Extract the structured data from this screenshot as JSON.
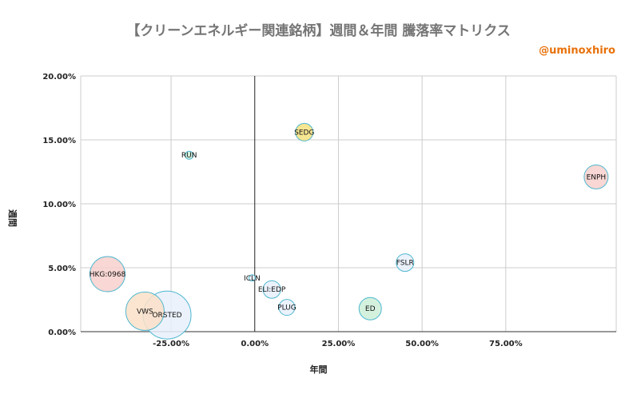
{
  "header": {
    "title": "【クリーンエネルギー関連銘柄】週間＆年間 騰落率マトリクス",
    "author": "@uminoxhiro"
  },
  "chart_data": {
    "type": "scatter",
    "title": "【クリーンエネルギー関連銘柄】週間＆年間 騰落率マトリクス",
    "xlabel": "年間",
    "ylabel": "週間",
    "xlim": [
      -0.52,
      1.08
    ],
    "ylim": [
      0,
      0.2
    ],
    "x_ticks": [
      {
        "v": -0.25,
        "label": "-25.00%"
      },
      {
        "v": 0.0,
        "label": "0.00%"
      },
      {
        "v": 0.25,
        "label": "25.00%"
      },
      {
        "v": 0.5,
        "label": "50.00%"
      },
      {
        "v": 0.75,
        "label": "75.00%"
      }
    ],
    "y_ticks": [
      {
        "v": 0.0,
        "label": "0.00%"
      },
      {
        "v": 0.05,
        "label": "5.00%"
      },
      {
        "v": 0.1,
        "label": "10.00%"
      },
      {
        "v": 0.15,
        "label": "15.00%"
      },
      {
        "v": 0.2,
        "label": "20.00%"
      }
    ],
    "grid": true,
    "points": [
      {
        "label": "SEDG",
        "x": 0.148,
        "y": 0.156,
        "size": 11,
        "color": "#f6e27f"
      },
      {
        "label": "RUN",
        "x": -0.196,
        "y": 0.138,
        "size": 5,
        "color": "#cdeed8"
      },
      {
        "label": "ENPH",
        "x": 1.02,
        "y": 0.121,
        "size": 15,
        "color": "#f7d0cd"
      },
      {
        "label": "FSLR",
        "x": 0.449,
        "y": 0.054,
        "size": 11,
        "color": "#e8f0fb"
      },
      {
        "label": "HKG:0968",
        "x": -0.44,
        "y": 0.045,
        "size": 22,
        "color": "#f7d0cd"
      },
      {
        "label": "ICLN",
        "x": -0.008,
        "y": 0.042,
        "size": 4,
        "color": "#e8f0fb"
      },
      {
        "label": "ELI:EDP",
        "x": 0.051,
        "y": 0.033,
        "size": 11,
        "color": "#e8f0fb"
      },
      {
        "label": "PLUG",
        "x": 0.096,
        "y": 0.019,
        "size": 10,
        "color": "#e8f0fb"
      },
      {
        "label": "ED",
        "x": 0.345,
        "y": 0.018,
        "size": 14,
        "color": "#cdeed8"
      },
      {
        "label": "VWS",
        "x": -0.328,
        "y": 0.016,
        "size": 24,
        "color": "#fce0c8"
      },
      {
        "label": "ORSTED",
        "x": -0.262,
        "y": 0.013,
        "size": 30,
        "color": "#e8f0fb"
      }
    ]
  }
}
